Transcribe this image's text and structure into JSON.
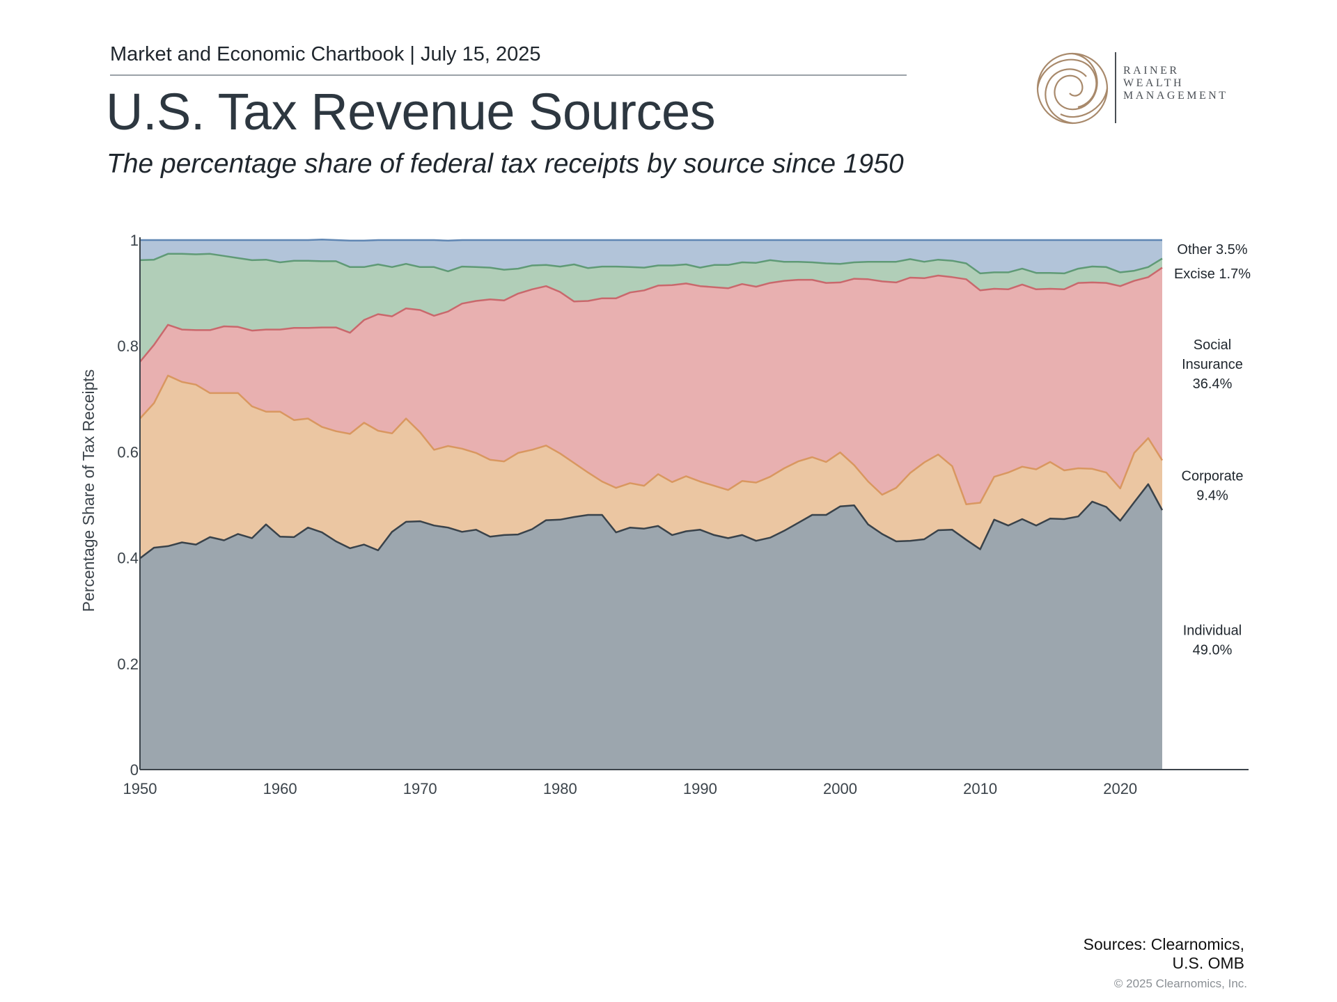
{
  "header": {
    "kicker": "Market and Economic Chartbook | July 15, 2025",
    "title": "U.S. Tax Revenue Sources",
    "subtitle": "The percentage share of federal tax receipts by source since 1950"
  },
  "logo": {
    "lines": [
      "RAINER",
      "WEALTH",
      "MANAGEMENT"
    ],
    "color": "#a8896b"
  },
  "footer": {
    "sources_line1": "Sources: Clearnomics,",
    "sources_line2": "U.S. OMB",
    "copyright": "© 2025 Clearnomics, Inc."
  },
  "chart_data": {
    "type": "area",
    "stacked": true,
    "ylabel": "Percentage Share of Tax Receipts",
    "xlabel": "",
    "ylim": [
      0,
      1
    ],
    "xlim": [
      1950,
      2029
    ],
    "x_ticks": [
      1950,
      1960,
      1970,
      1980,
      1990,
      2000,
      2010,
      2020
    ],
    "y_ticks": [
      {
        "value": 0,
        "label": "0"
      },
      {
        "value": 0.2,
        "label": "0.2"
      },
      {
        "value": 0.4,
        "label": "0.4"
      },
      {
        "value": 0.6,
        "label": "0.6"
      },
      {
        "value": 0.8,
        "label": "0.8"
      },
      {
        "value": 1,
        "label": "1"
      }
    ],
    "x": [
      1950,
      1951,
      1952,
      1953,
      1954,
      1955,
      1956,
      1957,
      1958,
      1959,
      1960,
      1961,
      1962,
      1963,
      1964,
      1965,
      1966,
      1967,
      1968,
      1969,
      1970,
      1971,
      1972,
      1973,
      1974,
      1975,
      1976,
      1977,
      1978,
      1979,
      1980,
      1981,
      1982,
      1983,
      1984,
      1985,
      1986,
      1987,
      1988,
      1989,
      1990,
      1991,
      1992,
      1993,
      1994,
      1995,
      1996,
      1997,
      1998,
      1999,
      2000,
      2001,
      2002,
      2003,
      2004,
      2005,
      2006,
      2007,
      2008,
      2009,
      2010,
      2011,
      2012,
      2013,
      2014,
      2015,
      2016,
      2017,
      2018,
      2019,
      2020,
      2021,
      2022,
      2023
    ],
    "series": [
      {
        "name": "Individual",
        "fill": "#9ca6ae",
        "stroke": "#39424a",
        "values": [
          0.399,
          0.419,
          0.422,
          0.429,
          0.425,
          0.439,
          0.433,
          0.445,
          0.437,
          0.463,
          0.44,
          0.439,
          0.457,
          0.448,
          0.431,
          0.418,
          0.425,
          0.414,
          0.449,
          0.468,
          0.469,
          0.461,
          0.457,
          0.449,
          0.453,
          0.44,
          0.443,
          0.444,
          0.454,
          0.471,
          0.472,
          0.477,
          0.481,
          0.481,
          0.448,
          0.457,
          0.455,
          0.46,
          0.443,
          0.45,
          0.453,
          0.443,
          0.437,
          0.443,
          0.432,
          0.438,
          0.451,
          0.466,
          0.481,
          0.481,
          0.497,
          0.499,
          0.463,
          0.445,
          0.431,
          0.432,
          0.435,
          0.452,
          0.453,
          0.434,
          0.416,
          0.472,
          0.461,
          0.473,
          0.461,
          0.474,
          0.473,
          0.478,
          0.506,
          0.496,
          0.47,
          0.505,
          0.539,
          0.49
        ]
      },
      {
        "name": "Corporate",
        "fill": "#ebc6a2",
        "stroke": "#d99760",
        "values": [
          0.264,
          0.273,
          0.322,
          0.303,
          0.302,
          0.272,
          0.278,
          0.266,
          0.249,
          0.213,
          0.236,
          0.221,
          0.206,
          0.199,
          0.208,
          0.216,
          0.23,
          0.226,
          0.186,
          0.195,
          0.168,
          0.143,
          0.154,
          0.157,
          0.145,
          0.145,
          0.139,
          0.154,
          0.15,
          0.141,
          0.125,
          0.102,
          0.08,
          0.063,
          0.084,
          0.084,
          0.081,
          0.098,
          0.1,
          0.104,
          0.091,
          0.093,
          0.091,
          0.102,
          0.11,
          0.115,
          0.118,
          0.116,
          0.109,
          0.1,
          0.102,
          0.076,
          0.081,
          0.074,
          0.101,
          0.128,
          0.145,
          0.143,
          0.12,
          0.067,
          0.088,
          0.081,
          0.1,
          0.099,
          0.106,
          0.107,
          0.092,
          0.091,
          0.062,
          0.065,
          0.061,
          0.093,
          0.087,
          0.094
        ]
      },
      {
        "name": "Social Insurance",
        "fill": "#e8b0b0",
        "stroke": "#c9686c",
        "values": [
          0.107,
          0.11,
          0.096,
          0.099,
          0.103,
          0.119,
          0.126,
          0.125,
          0.143,
          0.155,
          0.155,
          0.174,
          0.171,
          0.188,
          0.196,
          0.191,
          0.194,
          0.22,
          0.221,
          0.208,
          0.231,
          0.253,
          0.254,
          0.274,
          0.287,
          0.303,
          0.304,
          0.301,
          0.303,
          0.301,
          0.305,
          0.305,
          0.324,
          0.346,
          0.358,
          0.36,
          0.369,
          0.356,
          0.372,
          0.364,
          0.369,
          0.375,
          0.381,
          0.372,
          0.37,
          0.366,
          0.354,
          0.343,
          0.335,
          0.338,
          0.321,
          0.352,
          0.382,
          0.403,
          0.388,
          0.369,
          0.348,
          0.338,
          0.357,
          0.425,
          0.401,
          0.355,
          0.346,
          0.344,
          0.34,
          0.327,
          0.342,
          0.35,
          0.352,
          0.358,
          0.382,
          0.325,
          0.304,
          0.364
        ]
      },
      {
        "name": "Excise",
        "fill": "#b1ceb8",
        "stroke": "#5f9a76",
        "values": [
          0.192,
          0.161,
          0.134,
          0.143,
          0.143,
          0.144,
          0.133,
          0.13,
          0.133,
          0.132,
          0.127,
          0.127,
          0.127,
          0.125,
          0.125,
          0.124,
          0.1,
          0.094,
          0.093,
          0.084,
          0.081,
          0.092,
          0.076,
          0.07,
          0.064,
          0.06,
          0.058,
          0.047,
          0.045,
          0.04,
          0.048,
          0.07,
          0.062,
          0.06,
          0.06,
          0.048,
          0.043,
          0.038,
          0.037,
          0.036,
          0.035,
          0.042,
          0.044,
          0.041,
          0.045,
          0.043,
          0.036,
          0.034,
          0.033,
          0.037,
          0.035,
          0.031,
          0.033,
          0.037,
          0.039,
          0.035,
          0.031,
          0.03,
          0.031,
          0.03,
          0.032,
          0.031,
          0.032,
          0.03,
          0.031,
          0.03,
          0.03,
          0.027,
          0.03,
          0.03,
          0.026,
          0.019,
          0.019,
          0.017
        ]
      },
      {
        "name": "Other",
        "fill": "#b2c4d9",
        "stroke": "#5f86b3",
        "values": [
          0.038,
          0.037,
          0.026,
          0.026,
          0.027,
          0.026,
          0.03,
          0.034,
          0.038,
          0.037,
          0.042,
          0.039,
          0.039,
          0.041,
          0.04,
          0.05,
          0.05,
          0.046,
          0.051,
          0.045,
          0.051,
          0.051,
          0.058,
          0.05,
          0.051,
          0.052,
          0.056,
          0.054,
          0.048,
          0.047,
          0.05,
          0.046,
          0.053,
          0.05,
          0.05,
          0.051,
          0.052,
          0.048,
          0.048,
          0.046,
          0.052,
          0.047,
          0.047,
          0.042,
          0.043,
          0.038,
          0.041,
          0.041,
          0.042,
          0.044,
          0.045,
          0.042,
          0.041,
          0.041,
          0.041,
          0.036,
          0.041,
          0.037,
          0.039,
          0.044,
          0.063,
          0.061,
          0.061,
          0.054,
          0.062,
          0.062,
          0.063,
          0.054,
          0.05,
          0.051,
          0.061,
          0.058,
          0.051,
          0.035
        ]
      }
    ],
    "end_labels": [
      {
        "series": "Other",
        "lines": [
          "Other  3.5%"
        ]
      },
      {
        "series": "Excise",
        "lines": [
          "Excise  1.7%"
        ]
      },
      {
        "series": "Social Insurance",
        "lines": [
          "Social",
          "Insurance",
          "36.4%"
        ]
      },
      {
        "series": "Corporate",
        "lines": [
          "Corporate",
          "9.4%"
        ]
      },
      {
        "series": "Individual",
        "lines": [
          "Individual",
          "49.0%"
        ]
      }
    ],
    "grid": false,
    "legend": "end-labels-right"
  }
}
